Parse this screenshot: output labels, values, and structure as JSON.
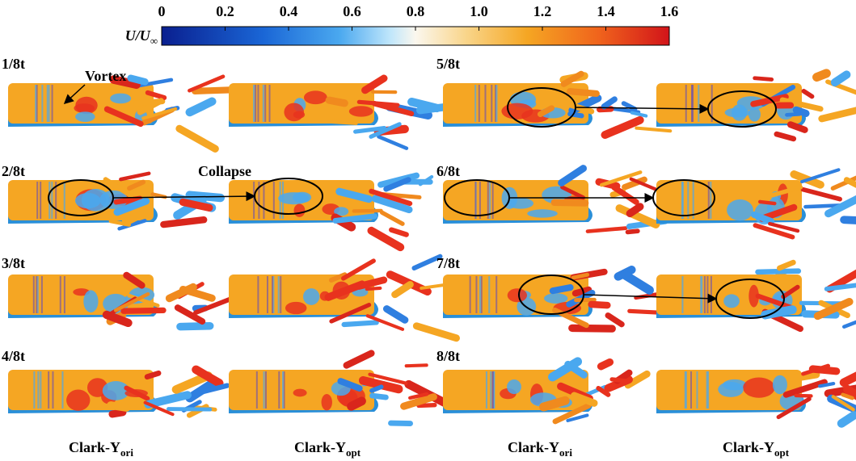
{
  "colorbar": {
    "label": {
      "main": "U/U",
      "sub": "∞"
    },
    "lim": [
      0,
      1.6
    ],
    "ticks": [
      0,
      0.2,
      0.4,
      0.6,
      0.8,
      {
        "value": 1,
        "label": "1.0"
      },
      1.2,
      1.4,
      1.6
    ]
  },
  "panels": [
    {
      "label": "1/8t"
    },
    {
      "label": "2/8t"
    },
    {
      "label": "3/8t"
    },
    {
      "label": "4/8t"
    },
    {
      "label": "5/8t"
    },
    {
      "label": "6/8t"
    },
    {
      "label": "7/8t"
    },
    {
      "label": "8/8t"
    }
  ],
  "annotations": {
    "vortex": "Vortex",
    "collapse": "Collapse"
  },
  "columns": [
    {
      "main": "Clark-Y",
      "sub": "ori"
    },
    {
      "main": "Clark-Y",
      "sub": "opt"
    },
    {
      "main": "Clark-Y",
      "sub": "ori"
    },
    {
      "main": "Clark-Y",
      "sub": "opt"
    }
  ]
}
